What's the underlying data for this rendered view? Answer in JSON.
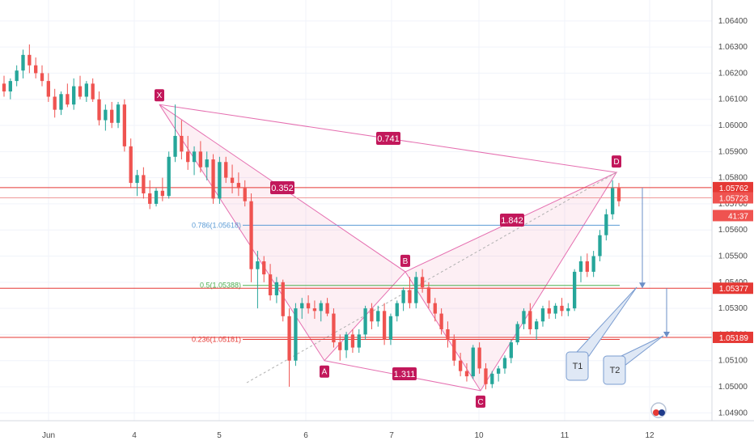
{
  "chart_data": {
    "type": "candlestick",
    "symbol_hint": "EUR/USD style forex, hourly",
    "x_ticks": [
      "Jun",
      "4",
      "5",
      "6",
      "7",
      "10",
      "11",
      "12"
    ],
    "y_ticks": [
      "1.06400",
      "1.06300",
      "1.06200",
      "1.06100",
      "1.06000",
      "1.05900",
      "1.05800",
      "1.05700",
      "1.05600",
      "1.05500",
      "1.05400",
      "1.05300",
      "1.05200",
      "1.05100",
      "1.05000",
      "1.04900"
    ],
    "ylim": [
      1.0487,
      1.0648
    ],
    "grid": true,
    "price_tags": [
      {
        "label": "1.05762",
        "value": 1.05762,
        "color": "#e53935"
      },
      {
        "label": "1.05723",
        "value": 1.05723,
        "color": "#ef5350"
      },
      {
        "label": "41:37",
        "value": 1.05655,
        "color": "#ef5350"
      },
      {
        "label": "1.05377",
        "value": 1.05377,
        "color": "#e53935"
      },
      {
        "label": "1.05189",
        "value": 1.05189,
        "color": "#e53935"
      }
    ],
    "horizontal_lines": [
      {
        "value": 1.05762,
        "color": "#e53935"
      },
      {
        "value": 1.05723,
        "color": "#ef9a9a"
      },
      {
        "value": 1.05377,
        "color": "#e53935"
      },
      {
        "value": 1.05189,
        "color": "#e53935"
      }
    ],
    "fib_levels": [
      {
        "label": "0.786(1.05618)",
        "value": 1.05618,
        "color": "#5b9bd5"
      },
      {
        "label": "0.5(1.05388)",
        "value": 1.05388,
        "color": "#4caf50"
      },
      {
        "label": "0.236(1.05181)",
        "value": 1.05181,
        "color": "#e53935"
      }
    ],
    "harmonic_points": [
      {
        "label": "X",
        "value": 1.0608
      },
      {
        "label": "A",
        "value": 1.051
      },
      {
        "label": "B",
        "value": 1.0544
      },
      {
        "label": "C",
        "value": 1.04985
      },
      {
        "label": "D",
        "value": 1.0582
      }
    ],
    "ratios": [
      {
        "label": "0.741"
      },
      {
        "label": "0.352"
      },
      {
        "label": "1.842"
      },
      {
        "label": "1.311"
      }
    ],
    "targets": [
      {
        "label": "T1",
        "value": 1.05377
      },
      {
        "label": "T2",
        "value": 1.05189
      }
    ],
    "candles": [
      [
        1.0616,
        1.0619,
        1.0611,
        1.0613
      ],
      [
        1.0613,
        1.0618,
        1.061,
        1.0617
      ],
      [
        1.0617,
        1.0623,
        1.0615,
        1.0621
      ],
      [
        1.0621,
        1.0629,
        1.0618,
        1.0627
      ],
      [
        1.0627,
        1.0631,
        1.062,
        1.0623
      ],
      [
        1.0623,
        1.0626,
        1.0618,
        1.062
      ],
      [
        1.062,
        1.0623,
        1.0615,
        1.0617
      ],
      [
        1.0617,
        1.062,
        1.0609,
        1.0611
      ],
      [
        1.0611,
        1.0614,
        1.0603,
        1.0606
      ],
      [
        1.0606,
        1.0613,
        1.0604,
        1.0612
      ],
      [
        1.0612,
        1.0616,
        1.0607,
        1.0608
      ],
      [
        1.0608,
        1.0618,
        1.0606,
        1.0615
      ],
      [
        1.0615,
        1.0619,
        1.061,
        1.0611
      ],
      [
        1.0611,
        1.0617,
        1.0609,
        1.0616
      ],
      [
        1.0616,
        1.0618,
        1.0609,
        1.061
      ],
      [
        1.061,
        1.0613,
        1.06,
        1.0602
      ],
      [
        1.0602,
        1.0608,
        1.0598,
        1.0606
      ],
      [
        1.0606,
        1.0609,
        1.0599,
        1.0601
      ],
      [
        1.0601,
        1.0609,
        1.0599,
        1.0608
      ],
      [
        1.0608,
        1.061,
        1.059,
        1.0592
      ],
      [
        1.0592,
        1.0595,
        1.0576,
        1.0578
      ],
      [
        1.0578,
        1.0583,
        1.0573,
        1.0581
      ],
      [
        1.0581,
        1.0584,
        1.0572,
        1.0574
      ],
      [
        1.0574,
        1.0579,
        1.0568,
        1.057
      ],
      [
        1.057,
        1.0576,
        1.0569,
        1.0575
      ],
      [
        1.0575,
        1.058,
        1.0571,
        1.0573
      ],
      [
        1.0573,
        1.059,
        1.0572,
        1.0588
      ],
      [
        1.0588,
        1.0608,
        1.0586,
        1.0596
      ],
      [
        1.0596,
        1.0602,
        1.0587,
        1.059
      ],
      [
        1.059,
        1.0596,
        1.0583,
        1.0586
      ],
      [
        1.0586,
        1.0592,
        1.0581,
        1.059
      ],
      [
        1.059,
        1.0594,
        1.0582,
        1.0584
      ],
      [
        1.0584,
        1.059,
        1.0579,
        1.0587
      ],
      [
        1.0587,
        1.0589,
        1.057,
        1.0572
      ],
      [
        1.0572,
        1.0588,
        1.057,
        1.0586
      ],
      [
        1.0586,
        1.0588,
        1.0578,
        1.058
      ],
      [
        1.058,
        1.0585,
        1.0574,
        1.0578
      ],
      [
        1.0578,
        1.0582,
        1.0573,
        1.0576
      ],
      [
        1.0576,
        1.0579,
        1.0569,
        1.0571
      ],
      [
        1.0571,
        1.0574,
        1.054,
        1.0545
      ],
      [
        1.0545,
        1.0552,
        1.053,
        1.0548
      ],
      [
        1.0548,
        1.055,
        1.054,
        1.0543
      ],
      [
        1.0543,
        1.0547,
        1.0533,
        1.0535
      ],
      [
        1.0535,
        1.0542,
        1.0532,
        1.054
      ],
      [
        1.054,
        1.0541,
        1.0525,
        1.0527
      ],
      [
        1.0527,
        1.053,
        1.05,
        1.051
      ],
      [
        1.051,
        1.0532,
        1.0508,
        1.053
      ],
      [
        1.053,
        1.0534,
        1.0526,
        1.0532
      ],
      [
        1.0532,
        1.0535,
        1.0528,
        1.053
      ],
      [
        1.053,
        1.0533,
        1.0526,
        1.0529
      ],
      [
        1.0529,
        1.0533,
        1.0525,
        1.0532
      ],
      [
        1.0532,
        1.0534,
        1.0527,
        1.0528
      ],
      [
        1.0528,
        1.053,
        1.0515,
        1.0517
      ],
      [
        1.0517,
        1.052,
        1.051,
        1.0514
      ],
      [
        1.0514,
        1.0521,
        1.0511,
        1.052
      ],
      [
        1.052,
        1.0522,
        1.0513,
        1.0515
      ],
      [
        1.0515,
        1.0522,
        1.0513,
        1.052
      ],
      [
        1.052,
        1.0531,
        1.0518,
        1.053
      ],
      [
        1.053,
        1.0532,
        1.0522,
        1.0525
      ],
      [
        1.0525,
        1.0531,
        1.0523,
        1.0529
      ],
      [
        1.0529,
        1.0532,
        1.0516,
        1.0518
      ],
      [
        1.0518,
        1.0528,
        1.0516,
        1.0527
      ],
      [
        1.0527,
        1.0533,
        1.0525,
        1.0532
      ],
      [
        1.0532,
        1.0538,
        1.0529,
        1.0537
      ],
      [
        1.0537,
        1.0542,
        1.053,
        1.0532
      ],
      [
        1.0532,
        1.0544,
        1.053,
        1.0542
      ],
      [
        1.0542,
        1.0545,
        1.0536,
        1.0538
      ],
      [
        1.0538,
        1.054,
        1.053,
        1.0532
      ],
      [
        1.0532,
        1.0534,
        1.0525,
        1.0528
      ],
      [
        1.0528,
        1.053,
        1.052,
        1.0522
      ],
      [
        1.0522,
        1.0525,
        1.0515,
        1.0518
      ],
      [
        1.0518,
        1.052,
        1.0508,
        1.051
      ],
      [
        1.051,
        1.0513,
        1.0504,
        1.0506
      ],
      [
        1.0506,
        1.0509,
        1.0502,
        1.0504
      ],
      [
        1.0504,
        1.0516,
        1.0503,
        1.0515
      ],
      [
        1.0515,
        1.0517,
        1.0505,
        1.0507
      ],
      [
        1.0507,
        1.0509,
        1.0499,
        1.0501
      ],
      [
        1.0501,
        1.0506,
        1.04995,
        1.0505
      ],
      [
        1.0505,
        1.0508,
        1.0502,
        1.0507
      ],
      [
        1.0507,
        1.0512,
        1.0505,
        1.0511
      ],
      [
        1.0511,
        1.0518,
        1.0509,
        1.0517
      ],
      [
        1.0517,
        1.0525,
        1.0516,
        1.0524
      ],
      [
        1.0524,
        1.053,
        1.0522,
        1.0529
      ],
      [
        1.0529,
        1.0532,
        1.052,
        1.0522
      ],
      [
        1.0522,
        1.0526,
        1.0518,
        1.0525
      ],
      [
        1.0525,
        1.0531,
        1.0523,
        1.053
      ],
      [
        1.053,
        1.0533,
        1.0526,
        1.0528
      ],
      [
        1.0528,
        1.0532,
        1.0526,
        1.0531
      ],
      [
        1.0531,
        1.0534,
        1.0527,
        1.0529
      ],
      [
        1.0529,
        1.0532,
        1.0527,
        1.053
      ],
      [
        1.053,
        1.0545,
        1.0529,
        1.0544
      ],
      [
        1.0544,
        1.055,
        1.054,
        1.0548
      ],
      [
        1.0548,
        1.0551,
        1.0542,
        1.0544
      ],
      [
        1.0544,
        1.0552,
        1.0542,
        1.055
      ],
      [
        1.055,
        1.056,
        1.0548,
        1.0558
      ],
      [
        1.0558,
        1.0568,
        1.0556,
        1.0566
      ],
      [
        1.0566,
        1.0579,
        1.0564,
        1.0576
      ],
      [
        1.0576,
        1.0578,
        1.0569,
        1.0571
      ]
    ]
  },
  "watermark": "TradingView-style logo"
}
